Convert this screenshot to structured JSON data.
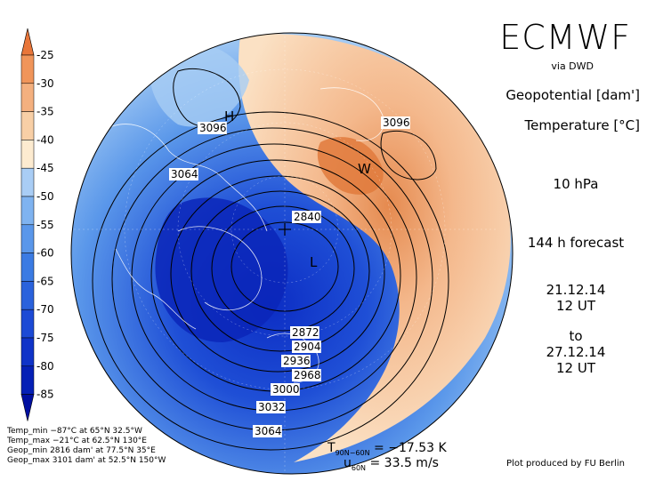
{
  "header": {
    "brand": "ECMWF",
    "source": "via DWD",
    "field1": "Geopotential [dam']",
    "field2": "Temperature [°C]",
    "level": "10 hPa",
    "forecast": "144 h forecast",
    "init_date": "21.12.14",
    "init_time": "12 UT",
    "to": "to",
    "valid_date": "27.12.14",
    "valid_time": "12 UT"
  },
  "colorbar": {
    "levels": [
      "-25",
      "-30",
      "-35",
      "-40",
      "-45",
      "-50",
      "-55",
      "-60",
      "-65",
      "-70",
      "-75",
      "-80",
      "-85"
    ],
    "colors": [
      "#e8763a",
      "#f0955a",
      "#f4b07f",
      "#f8cfa6",
      "#fdebd0",
      "#a9cdf5",
      "#7fb3f0",
      "#5a97ea",
      "#3b7be3",
      "#2a62dc",
      "#1c4ad5",
      "#0f33c8",
      "#0520b6",
      "#000fa0"
    ]
  },
  "map": {
    "contour_labels": [
      "3096",
      "3096",
      "3064",
      "2840",
      "2872",
      "2904",
      "2936",
      "2968",
      "3000",
      "3032",
      "3064"
    ],
    "markers": [
      "H",
      "W",
      "L"
    ],
    "colors": {
      "warm_deep": "#e58a4f",
      "warm_mid": "#f4b88c",
      "warm_light": "#fbe1c4",
      "cold_light": "#a7cdf4",
      "cold_mid": "#5b98ea",
      "cold_deep": "#1f4fd6",
      "cold_core": "#0c2dc4"
    }
  },
  "stats": {
    "temp_min": "Temp_min −87°C at 65°N 32.5°W",
    "temp_max": "Temp_max −21°C at 62.5°N 130°E",
    "geop_min": "Geop_min 2816 dam' at 77.5°N 35°E",
    "geop_max": "Geop_max 3101 dam' at 52.5°N 150°W"
  },
  "indices": {
    "t_label": "T",
    "t_sub": "90N−60N",
    "t_value": "=  −17.53 K",
    "u_label": "u",
    "u_sub": "60N",
    "u_value": "=  33.5 m/s"
  },
  "credit": "Plot produced by FU Berlin"
}
